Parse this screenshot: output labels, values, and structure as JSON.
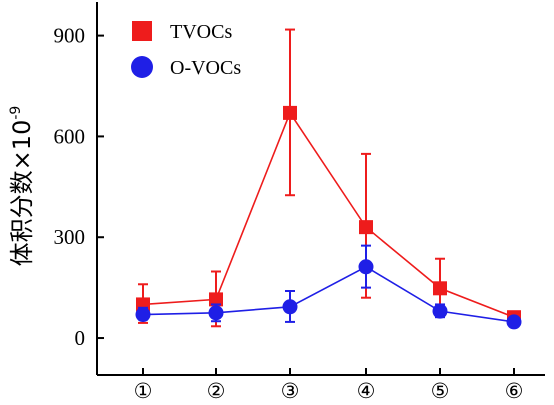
{
  "chart_data": {
    "type": "line",
    "categories": [
      "①",
      "②",
      "③",
      "④",
      "⑤",
      "⑥"
    ],
    "ylabel": "体积分数×10",
    "ylabel_exponent": "-9",
    "yticks": [
      0,
      300,
      600,
      900
    ],
    "ylim": [
      -110,
      1000
    ],
    "legend_position": "top-left",
    "series": [
      {
        "name": "TVOCs",
        "color": "#ee1c1c",
        "marker": "square",
        "values": [
          100,
          115,
          670,
          330,
          148,
          62
        ],
        "err_low": [
          45,
          35,
          425,
          120,
          80,
          55
        ],
        "err_high": [
          160,
          198,
          918,
          548,
          236,
          78
        ]
      },
      {
        "name": "O-VOCs",
        "color": "#1f1fe6",
        "marker": "circle",
        "values": [
          70,
          75,
          93,
          212,
          80,
          48
        ],
        "err_low": [
          55,
          50,
          48,
          150,
          62,
          38
        ],
        "err_high": [
          90,
          100,
          140,
          275,
          100,
          58
        ]
      }
    ]
  }
}
